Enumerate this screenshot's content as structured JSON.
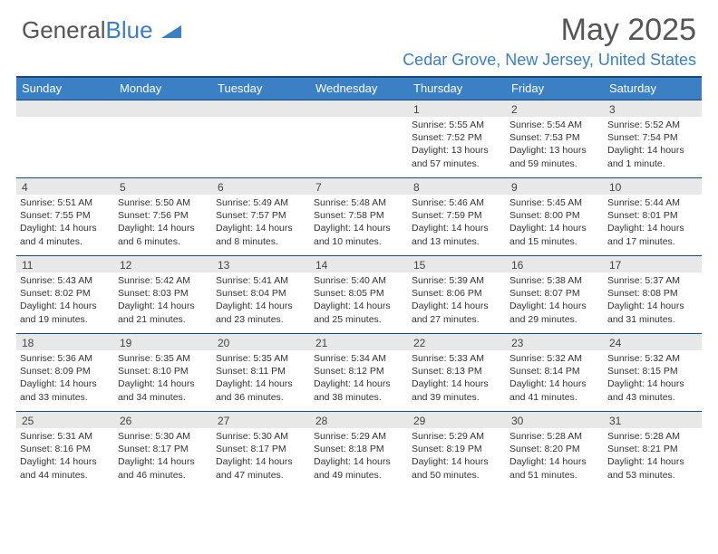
{
  "logo": {
    "text1": "General",
    "text2": "Blue"
  },
  "title": "May 2025",
  "location": "Cedar Grove, New Jersey, United States",
  "colors": {
    "header_bg": "#3b7fc4",
    "header_border": "#164a7a",
    "daynum_bg": "#e8e8e8",
    "text": "#333333",
    "logo_gray": "#555555",
    "logo_blue": "#3b7fc4"
  },
  "dayHeaders": [
    "Sunday",
    "Monday",
    "Tuesday",
    "Wednesday",
    "Thursday",
    "Friday",
    "Saturday"
  ],
  "weeks": [
    [
      {
        "n": "",
        "lines": []
      },
      {
        "n": "",
        "lines": []
      },
      {
        "n": "",
        "lines": []
      },
      {
        "n": "",
        "lines": []
      },
      {
        "n": "1",
        "lines": [
          "Sunrise: 5:55 AM",
          "Sunset: 7:52 PM",
          "Daylight: 13 hours",
          "and 57 minutes."
        ]
      },
      {
        "n": "2",
        "lines": [
          "Sunrise: 5:54 AM",
          "Sunset: 7:53 PM",
          "Daylight: 13 hours",
          "and 59 minutes."
        ]
      },
      {
        "n": "3",
        "lines": [
          "Sunrise: 5:52 AM",
          "Sunset: 7:54 PM",
          "Daylight: 14 hours",
          "and 1 minute."
        ]
      }
    ],
    [
      {
        "n": "4",
        "lines": [
          "Sunrise: 5:51 AM",
          "Sunset: 7:55 PM",
          "Daylight: 14 hours",
          "and 4 minutes."
        ]
      },
      {
        "n": "5",
        "lines": [
          "Sunrise: 5:50 AM",
          "Sunset: 7:56 PM",
          "Daylight: 14 hours",
          "and 6 minutes."
        ]
      },
      {
        "n": "6",
        "lines": [
          "Sunrise: 5:49 AM",
          "Sunset: 7:57 PM",
          "Daylight: 14 hours",
          "and 8 minutes."
        ]
      },
      {
        "n": "7",
        "lines": [
          "Sunrise: 5:48 AM",
          "Sunset: 7:58 PM",
          "Daylight: 14 hours",
          "and 10 minutes."
        ]
      },
      {
        "n": "8",
        "lines": [
          "Sunrise: 5:46 AM",
          "Sunset: 7:59 PM",
          "Daylight: 14 hours",
          "and 13 minutes."
        ]
      },
      {
        "n": "9",
        "lines": [
          "Sunrise: 5:45 AM",
          "Sunset: 8:00 PM",
          "Daylight: 14 hours",
          "and 15 minutes."
        ]
      },
      {
        "n": "10",
        "lines": [
          "Sunrise: 5:44 AM",
          "Sunset: 8:01 PM",
          "Daylight: 14 hours",
          "and 17 minutes."
        ]
      }
    ],
    [
      {
        "n": "11",
        "lines": [
          "Sunrise: 5:43 AM",
          "Sunset: 8:02 PM",
          "Daylight: 14 hours",
          "and 19 minutes."
        ]
      },
      {
        "n": "12",
        "lines": [
          "Sunrise: 5:42 AM",
          "Sunset: 8:03 PM",
          "Daylight: 14 hours",
          "and 21 minutes."
        ]
      },
      {
        "n": "13",
        "lines": [
          "Sunrise: 5:41 AM",
          "Sunset: 8:04 PM",
          "Daylight: 14 hours",
          "and 23 minutes."
        ]
      },
      {
        "n": "14",
        "lines": [
          "Sunrise: 5:40 AM",
          "Sunset: 8:05 PM",
          "Daylight: 14 hours",
          "and 25 minutes."
        ]
      },
      {
        "n": "15",
        "lines": [
          "Sunrise: 5:39 AM",
          "Sunset: 8:06 PM",
          "Daylight: 14 hours",
          "and 27 minutes."
        ]
      },
      {
        "n": "16",
        "lines": [
          "Sunrise: 5:38 AM",
          "Sunset: 8:07 PM",
          "Daylight: 14 hours",
          "and 29 minutes."
        ]
      },
      {
        "n": "17",
        "lines": [
          "Sunrise: 5:37 AM",
          "Sunset: 8:08 PM",
          "Daylight: 14 hours",
          "and 31 minutes."
        ]
      }
    ],
    [
      {
        "n": "18",
        "lines": [
          "Sunrise: 5:36 AM",
          "Sunset: 8:09 PM",
          "Daylight: 14 hours",
          "and 33 minutes."
        ]
      },
      {
        "n": "19",
        "lines": [
          "Sunrise: 5:35 AM",
          "Sunset: 8:10 PM",
          "Daylight: 14 hours",
          "and 34 minutes."
        ]
      },
      {
        "n": "20",
        "lines": [
          "Sunrise: 5:35 AM",
          "Sunset: 8:11 PM",
          "Daylight: 14 hours",
          "and 36 minutes."
        ]
      },
      {
        "n": "21",
        "lines": [
          "Sunrise: 5:34 AM",
          "Sunset: 8:12 PM",
          "Daylight: 14 hours",
          "and 38 minutes."
        ]
      },
      {
        "n": "22",
        "lines": [
          "Sunrise: 5:33 AM",
          "Sunset: 8:13 PM",
          "Daylight: 14 hours",
          "and 39 minutes."
        ]
      },
      {
        "n": "23",
        "lines": [
          "Sunrise: 5:32 AM",
          "Sunset: 8:14 PM",
          "Daylight: 14 hours",
          "and 41 minutes."
        ]
      },
      {
        "n": "24",
        "lines": [
          "Sunrise: 5:32 AM",
          "Sunset: 8:15 PM",
          "Daylight: 14 hours",
          "and 43 minutes."
        ]
      }
    ],
    [
      {
        "n": "25",
        "lines": [
          "Sunrise: 5:31 AM",
          "Sunset: 8:16 PM",
          "Daylight: 14 hours",
          "and 44 minutes."
        ]
      },
      {
        "n": "26",
        "lines": [
          "Sunrise: 5:30 AM",
          "Sunset: 8:17 PM",
          "Daylight: 14 hours",
          "and 46 minutes."
        ]
      },
      {
        "n": "27",
        "lines": [
          "Sunrise: 5:30 AM",
          "Sunset: 8:17 PM",
          "Daylight: 14 hours",
          "and 47 minutes."
        ]
      },
      {
        "n": "28",
        "lines": [
          "Sunrise: 5:29 AM",
          "Sunset: 8:18 PM",
          "Daylight: 14 hours",
          "and 49 minutes."
        ]
      },
      {
        "n": "29",
        "lines": [
          "Sunrise: 5:29 AM",
          "Sunset: 8:19 PM",
          "Daylight: 14 hours",
          "and 50 minutes."
        ]
      },
      {
        "n": "30",
        "lines": [
          "Sunrise: 5:28 AM",
          "Sunset: 8:20 PM",
          "Daylight: 14 hours",
          "and 51 minutes."
        ]
      },
      {
        "n": "31",
        "lines": [
          "Sunrise: 5:28 AM",
          "Sunset: 8:21 PM",
          "Daylight: 14 hours",
          "and 53 minutes."
        ]
      }
    ]
  ]
}
